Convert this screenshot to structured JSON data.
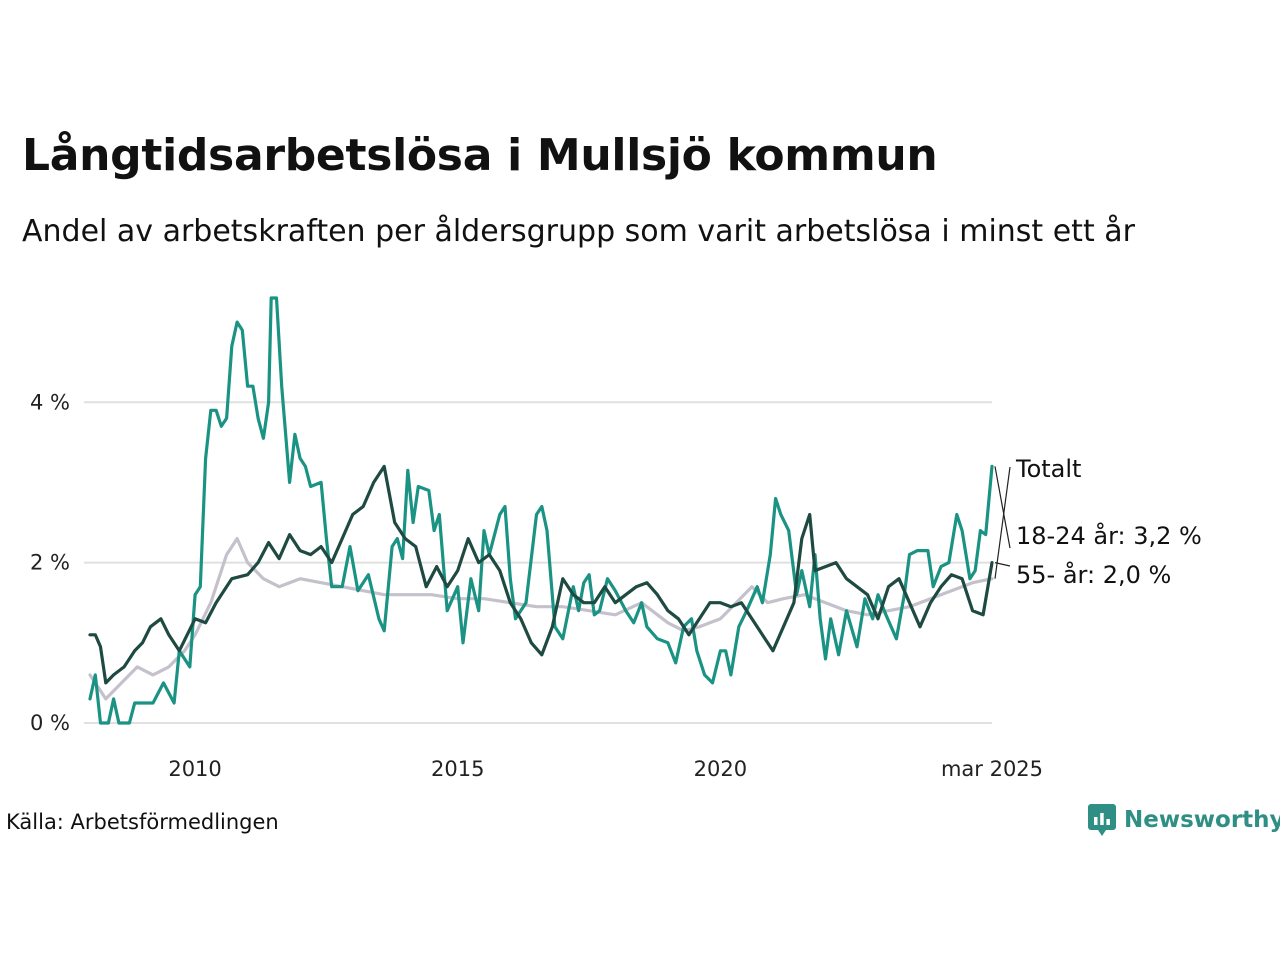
{
  "title": "Långtidsarbetslösa i Mullsjö kommun",
  "subtitle": "Andel av arbetskraften per åldersgrupp som varit arbetslösa i minst ett år",
  "source": "Källa: Arbetsförmedlingen",
  "brand": {
    "name": "Newsworthy",
    "icon": "newsworthy-logo-icon"
  },
  "chart_data": {
    "type": "line",
    "title": "Långtidsarbetslösa i Mullsjö kommun",
    "subtitle": "Andel av arbetskraften per åldersgrupp som varit arbetslösa i minst ett år",
    "xlabel": "",
    "ylabel": "",
    "x_range": [
      2008.0,
      2025.17
    ],
    "ylim": [
      0,
      5.4
    ],
    "y_ticks": [
      {
        "value": 0,
        "label": "0 %"
      },
      {
        "value": 2,
        "label": "2 %"
      },
      {
        "value": 4,
        "label": "4 %"
      }
    ],
    "x_ticks": [
      {
        "value": 2010,
        "label": "2010"
      },
      {
        "value": 2015,
        "label": "2015"
      },
      {
        "value": 2020,
        "label": "2020"
      },
      {
        "value": 2025.17,
        "label": "mar 2025"
      }
    ],
    "grid": true,
    "series": [
      {
        "name": "Totalt",
        "color": "#c4c1cc",
        "end_label": "Totalt",
        "points": [
          [
            2008.0,
            0.6
          ],
          [
            2008.3,
            0.3
          ],
          [
            2008.6,
            0.5
          ],
          [
            2008.9,
            0.7
          ],
          [
            2009.2,
            0.6
          ],
          [
            2009.5,
            0.7
          ],
          [
            2009.8,
            0.9
          ],
          [
            2010.0,
            1.1
          ],
          [
            2010.3,
            1.5
          ],
          [
            2010.6,
            2.1
          ],
          [
            2010.8,
            2.3
          ],
          [
            2011.0,
            2.0
          ],
          [
            2011.3,
            1.8
          ],
          [
            2011.6,
            1.7
          ],
          [
            2012.0,
            1.8
          ],
          [
            2012.4,
            1.75
          ],
          [
            2012.8,
            1.7
          ],
          [
            2013.2,
            1.65
          ],
          [
            2013.6,
            1.6
          ],
          [
            2014.0,
            1.6
          ],
          [
            2014.5,
            1.6
          ],
          [
            2015.0,
            1.55
          ],
          [
            2015.5,
            1.55
          ],
          [
            2016.0,
            1.5
          ],
          [
            2016.5,
            1.45
          ],
          [
            2017.0,
            1.45
          ],
          [
            2017.5,
            1.4
          ],
          [
            2018.0,
            1.35
          ],
          [
            2018.5,
            1.5
          ],
          [
            2019.0,
            1.25
          ],
          [
            2019.3,
            1.15
          ],
          [
            2019.6,
            1.2
          ],
          [
            2020.0,
            1.3
          ],
          [
            2020.3,
            1.5
          ],
          [
            2020.6,
            1.7
          ],
          [
            2020.9,
            1.5
          ],
          [
            2021.2,
            1.55
          ],
          [
            2021.6,
            1.6
          ],
          [
            2022.0,
            1.5
          ],
          [
            2022.4,
            1.4
          ],
          [
            2022.8,
            1.35
          ],
          [
            2023.2,
            1.4
          ],
          [
            2023.6,
            1.45
          ],
          [
            2024.0,
            1.55
          ],
          [
            2024.4,
            1.65
          ],
          [
            2024.8,
            1.75
          ],
          [
            2025.17,
            1.8
          ]
        ]
      },
      {
        "name": "18-24 år",
        "color": "#1b9384",
        "end_label": "18-24 år: 3,2 %",
        "points": [
          [
            2008.0,
            0.3
          ],
          [
            2008.1,
            0.6
          ],
          [
            2008.2,
            0.0
          ],
          [
            2008.35,
            0.0
          ],
          [
            2008.45,
            0.3
          ],
          [
            2008.55,
            0.0
          ],
          [
            2008.75,
            0.0
          ],
          [
            2008.85,
            0.25
          ],
          [
            2009.2,
            0.25
          ],
          [
            2009.4,
            0.5
          ],
          [
            2009.6,
            0.25
          ],
          [
            2009.7,
            0.9
          ],
          [
            2009.9,
            0.7
          ],
          [
            2010.0,
            1.6
          ],
          [
            2010.1,
            1.7
          ],
          [
            2010.2,
            3.3
          ],
          [
            2010.3,
            3.9
          ],
          [
            2010.4,
            3.9
          ],
          [
            2010.5,
            3.7
          ],
          [
            2010.6,
            3.8
          ],
          [
            2010.7,
            4.7
          ],
          [
            2010.8,
            5.0
          ],
          [
            2010.9,
            4.9
          ],
          [
            2011.0,
            4.2
          ],
          [
            2011.1,
            4.2
          ],
          [
            2011.2,
            3.8
          ],
          [
            2011.3,
            3.55
          ],
          [
            2011.4,
            4.0
          ],
          [
            2011.45,
            5.3
          ],
          [
            2011.55,
            5.3
          ],
          [
            2011.65,
            4.2
          ],
          [
            2011.8,
            3.0
          ],
          [
            2011.9,
            3.6
          ],
          [
            2012.0,
            3.3
          ],
          [
            2012.1,
            3.2
          ],
          [
            2012.2,
            2.95
          ],
          [
            2012.4,
            3.0
          ],
          [
            2012.5,
            2.3
          ],
          [
            2012.6,
            1.7
          ],
          [
            2012.8,
            1.7
          ],
          [
            2012.95,
            2.2
          ],
          [
            2013.1,
            1.65
          ],
          [
            2013.3,
            1.85
          ],
          [
            2013.5,
            1.3
          ],
          [
            2013.6,
            1.15
          ],
          [
            2013.75,
            2.2
          ],
          [
            2013.85,
            2.3
          ],
          [
            2013.95,
            2.05
          ],
          [
            2014.05,
            3.15
          ],
          [
            2014.15,
            2.5
          ],
          [
            2014.25,
            2.95
          ],
          [
            2014.45,
            2.9
          ],
          [
            2014.55,
            2.4
          ],
          [
            2014.65,
            2.6
          ],
          [
            2014.8,
            1.4
          ],
          [
            2015.0,
            1.7
          ],
          [
            2015.1,
            1.0
          ],
          [
            2015.25,
            1.8
          ],
          [
            2015.4,
            1.4
          ],
          [
            2015.5,
            2.4
          ],
          [
            2015.6,
            2.1
          ],
          [
            2015.8,
            2.6
          ],
          [
            2015.9,
            2.7
          ],
          [
            2016.0,
            1.8
          ],
          [
            2016.1,
            1.3
          ],
          [
            2016.3,
            1.5
          ],
          [
            2016.5,
            2.6
          ],
          [
            2016.6,
            2.7
          ],
          [
            2016.7,
            2.4
          ],
          [
            2016.85,
            1.2
          ],
          [
            2017.0,
            1.05
          ],
          [
            2017.2,
            1.7
          ],
          [
            2017.3,
            1.4
          ],
          [
            2017.4,
            1.75
          ],
          [
            2017.5,
            1.85
          ],
          [
            2017.6,
            1.35
          ],
          [
            2017.7,
            1.4
          ],
          [
            2017.85,
            1.8
          ],
          [
            2018.0,
            1.65
          ],
          [
            2018.2,
            1.4
          ],
          [
            2018.35,
            1.25
          ],
          [
            2018.5,
            1.5
          ],
          [
            2018.6,
            1.2
          ],
          [
            2018.8,
            1.05
          ],
          [
            2019.0,
            1.0
          ],
          [
            2019.15,
            0.75
          ],
          [
            2019.3,
            1.2
          ],
          [
            2019.45,
            1.3
          ],
          [
            2019.55,
            0.9
          ],
          [
            2019.7,
            0.6
          ],
          [
            2019.85,
            0.5
          ],
          [
            2020.0,
            0.9
          ],
          [
            2020.1,
            0.9
          ],
          [
            2020.2,
            0.6
          ],
          [
            2020.35,
            1.2
          ],
          [
            2020.5,
            1.4
          ],
          [
            2020.7,
            1.7
          ],
          [
            2020.8,
            1.5
          ],
          [
            2020.95,
            2.1
          ],
          [
            2021.05,
            2.8
          ],
          [
            2021.15,
            2.6
          ],
          [
            2021.3,
            2.4
          ],
          [
            2021.45,
            1.6
          ],
          [
            2021.55,
            1.9
          ],
          [
            2021.7,
            1.45
          ],
          [
            2021.8,
            2.1
          ],
          [
            2021.9,
            1.3
          ],
          [
            2022.0,
            0.8
          ],
          [
            2022.1,
            1.3
          ],
          [
            2022.25,
            0.85
          ],
          [
            2022.4,
            1.4
          ],
          [
            2022.6,
            0.95
          ],
          [
            2022.75,
            1.55
          ],
          [
            2022.9,
            1.3
          ],
          [
            2023.0,
            1.6
          ],
          [
            2023.15,
            1.35
          ],
          [
            2023.35,
            1.05
          ],
          [
            2023.5,
            1.6
          ],
          [
            2023.6,
            2.1
          ],
          [
            2023.75,
            2.15
          ],
          [
            2023.95,
            2.15
          ],
          [
            2024.05,
            1.7
          ],
          [
            2024.2,
            1.95
          ],
          [
            2024.35,
            2.0
          ],
          [
            2024.5,
            2.6
          ],
          [
            2024.6,
            2.4
          ],
          [
            2024.75,
            1.8
          ],
          [
            2024.85,
            1.9
          ],
          [
            2024.95,
            2.4
          ],
          [
            2025.05,
            2.35
          ],
          [
            2025.17,
            3.2
          ]
        ]
      },
      {
        "name": "55- år",
        "color": "#1e4a42",
        "end_label": "55- år: 2,0 %",
        "points": [
          [
            2008.0,
            1.1
          ],
          [
            2008.1,
            1.1
          ],
          [
            2008.2,
            0.95
          ],
          [
            2008.3,
            0.5
          ],
          [
            2008.45,
            0.6
          ],
          [
            2008.65,
            0.7
          ],
          [
            2008.85,
            0.9
          ],
          [
            2009.0,
            1.0
          ],
          [
            2009.15,
            1.2
          ],
          [
            2009.35,
            1.3
          ],
          [
            2009.5,
            1.1
          ],
          [
            2009.7,
            0.9
          ],
          [
            2009.85,
            1.1
          ],
          [
            2010.0,
            1.3
          ],
          [
            2010.2,
            1.25
          ],
          [
            2010.4,
            1.5
          ],
          [
            2010.7,
            1.8
          ],
          [
            2011.0,
            1.85
          ],
          [
            2011.2,
            2.0
          ],
          [
            2011.4,
            2.25
          ],
          [
            2011.6,
            2.05
          ],
          [
            2011.8,
            2.35
          ],
          [
            2012.0,
            2.15
          ],
          [
            2012.2,
            2.1
          ],
          [
            2012.4,
            2.2
          ],
          [
            2012.6,
            2.0
          ],
          [
            2012.8,
            2.3
          ],
          [
            2013.0,
            2.6
          ],
          [
            2013.2,
            2.7
          ],
          [
            2013.4,
            3.0
          ],
          [
            2013.6,
            3.2
          ],
          [
            2013.8,
            2.5
          ],
          [
            2014.0,
            2.3
          ],
          [
            2014.2,
            2.2
          ],
          [
            2014.4,
            1.7
          ],
          [
            2014.6,
            1.95
          ],
          [
            2014.8,
            1.7
          ],
          [
            2015.0,
            1.9
          ],
          [
            2015.2,
            2.3
          ],
          [
            2015.4,
            2.0
          ],
          [
            2015.6,
            2.1
          ],
          [
            2015.8,
            1.9
          ],
          [
            2016.0,
            1.5
          ],
          [
            2016.2,
            1.3
          ],
          [
            2016.4,
            1.0
          ],
          [
            2016.6,
            0.85
          ],
          [
            2016.8,
            1.2
          ],
          [
            2017.0,
            1.8
          ],
          [
            2017.2,
            1.6
          ],
          [
            2017.4,
            1.5
          ],
          [
            2017.6,
            1.5
          ],
          [
            2017.8,
            1.7
          ],
          [
            2018.0,
            1.5
          ],
          [
            2018.2,
            1.6
          ],
          [
            2018.4,
            1.7
          ],
          [
            2018.6,
            1.75
          ],
          [
            2018.8,
            1.6
          ],
          [
            2019.0,
            1.4
          ],
          [
            2019.2,
            1.3
          ],
          [
            2019.4,
            1.1
          ],
          [
            2019.6,
            1.3
          ],
          [
            2019.8,
            1.5
          ],
          [
            2020.0,
            1.5
          ],
          [
            2020.2,
            1.45
          ],
          [
            2020.4,
            1.5
          ],
          [
            2020.6,
            1.3
          ],
          [
            2020.8,
            1.1
          ],
          [
            2021.0,
            0.9
          ],
          [
            2021.2,
            1.2
          ],
          [
            2021.4,
            1.5
          ],
          [
            2021.55,
            2.3
          ],
          [
            2021.7,
            2.6
          ],
          [
            2021.8,
            1.9
          ],
          [
            2022.0,
            1.95
          ],
          [
            2022.2,
            2.0
          ],
          [
            2022.4,
            1.8
          ],
          [
            2022.6,
            1.7
          ],
          [
            2022.8,
            1.6
          ],
          [
            2023.0,
            1.3
          ],
          [
            2023.2,
            1.7
          ],
          [
            2023.4,
            1.8
          ],
          [
            2023.6,
            1.5
          ],
          [
            2023.8,
            1.2
          ],
          [
            2024.0,
            1.5
          ],
          [
            2024.2,
            1.7
          ],
          [
            2024.4,
            1.85
          ],
          [
            2024.6,
            1.8
          ],
          [
            2024.8,
            1.4
          ],
          [
            2025.0,
            1.35
          ],
          [
            2025.17,
            2.0
          ]
        ]
      }
    ]
  }
}
